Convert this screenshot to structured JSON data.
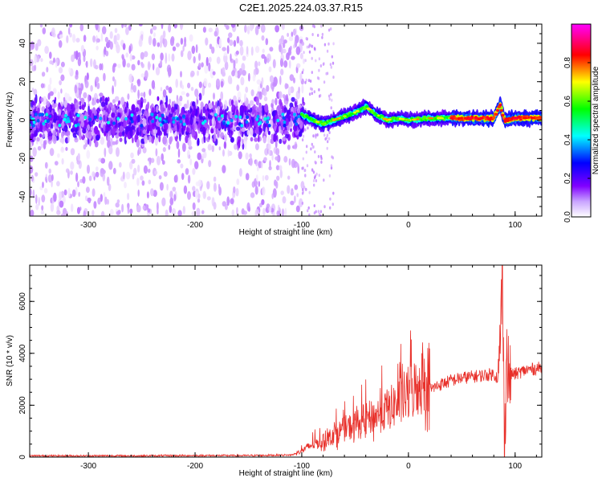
{
  "title": "C2E1.2025.224.03.37.R15",
  "colors": {
    "snr_line": "#e8302a",
    "frame": "#000000",
    "background": "#ffffff"
  },
  "chart_data": [
    {
      "type": "heatmap",
      "xlabel": "Height of straight line (km)",
      "ylabel": "Frequency (Hz)",
      "xlim": [
        -355,
        125
      ],
      "ylim": [
        -50,
        50
      ],
      "x_ticks": [
        -300,
        -200,
        -100,
        0,
        100
      ],
      "x_tick_labels": [
        "-300",
        "-200",
        "-100",
        "0",
        "100"
      ],
      "y_ticks": [
        -40,
        -20,
        0,
        20,
        40
      ],
      "y_tick_labels": [
        "-40",
        "-20",
        "0",
        "20",
        "40"
      ],
      "colorbar": {
        "label": "Normalized spectral amplitude",
        "range": [
          0,
          1
        ],
        "ticks": [
          0.0,
          0.2,
          0.4,
          0.6,
          0.8
        ],
        "tick_labels": [
          "0.0",
          "0.2",
          "0.4",
          "0.6",
          "0.8"
        ],
        "colormap": [
          "#ffffff",
          "#8000ff",
          "#0000ff",
          "#00ffff",
          "#00ff00",
          "#ffff00",
          "#ff0000",
          "#ff00ff"
        ]
      },
      "ridge_frequency": {
        "x": [
          -355,
          -300,
          -200,
          -110,
          -100,
          -90,
          -80,
          -70,
          -60,
          -50,
          -40,
          -30,
          -20,
          -10,
          0,
          20,
          40,
          60,
          80,
          86,
          90,
          100,
          125
        ],
        "y": [
          0,
          0,
          0,
          0,
          3,
          0,
          -2,
          0,
          2,
          4,
          7,
          3,
          0,
          1,
          0,
          1,
          1,
          1,
          1,
          8,
          0,
          1,
          1
        ]
      },
      "grid": false
    },
    {
      "type": "line",
      "xlabel": "Height of straight line (km)",
      "ylabel": "SNR (10 * v/v)",
      "xlim": [
        -355,
        125
      ],
      "ylim": [
        0,
        7400
      ],
      "x_ticks": [
        -300,
        -200,
        -100,
        0,
        100
      ],
      "x_tick_labels": [
        "-300",
        "-200",
        "-100",
        "0",
        "100"
      ],
      "y_ticks": [
        0,
        2000,
        4000,
        6000
      ],
      "y_tick_labels": [
        "0",
        "2000",
        "4000",
        "6000"
      ],
      "series": [
        {
          "x": [
            -355,
            -300,
            -250,
            -200,
            -150,
            -110,
            -100,
            -90,
            -80,
            -70,
            -60,
            -50,
            -40,
            -30,
            -20,
            -10,
            0,
            10,
            20,
            30,
            40,
            50,
            60,
            70,
            80,
            85,
            88,
            90,
            92,
            94,
            96,
            100,
            110,
            125
          ],
          "y": [
            50,
            50,
            50,
            60,
            60,
            80,
            200,
            400,
            500,
            700,
            900,
            1000,
            1200,
            1300,
            1500,
            1700,
            2000,
            2300,
            2600,
            2800,
            2950,
            3050,
            3100,
            3150,
            3200,
            3000,
            7100,
            500,
            4000,
            3000,
            3200,
            3200,
            3350,
            3450
          ]
        }
      ],
      "grid": false
    }
  ]
}
